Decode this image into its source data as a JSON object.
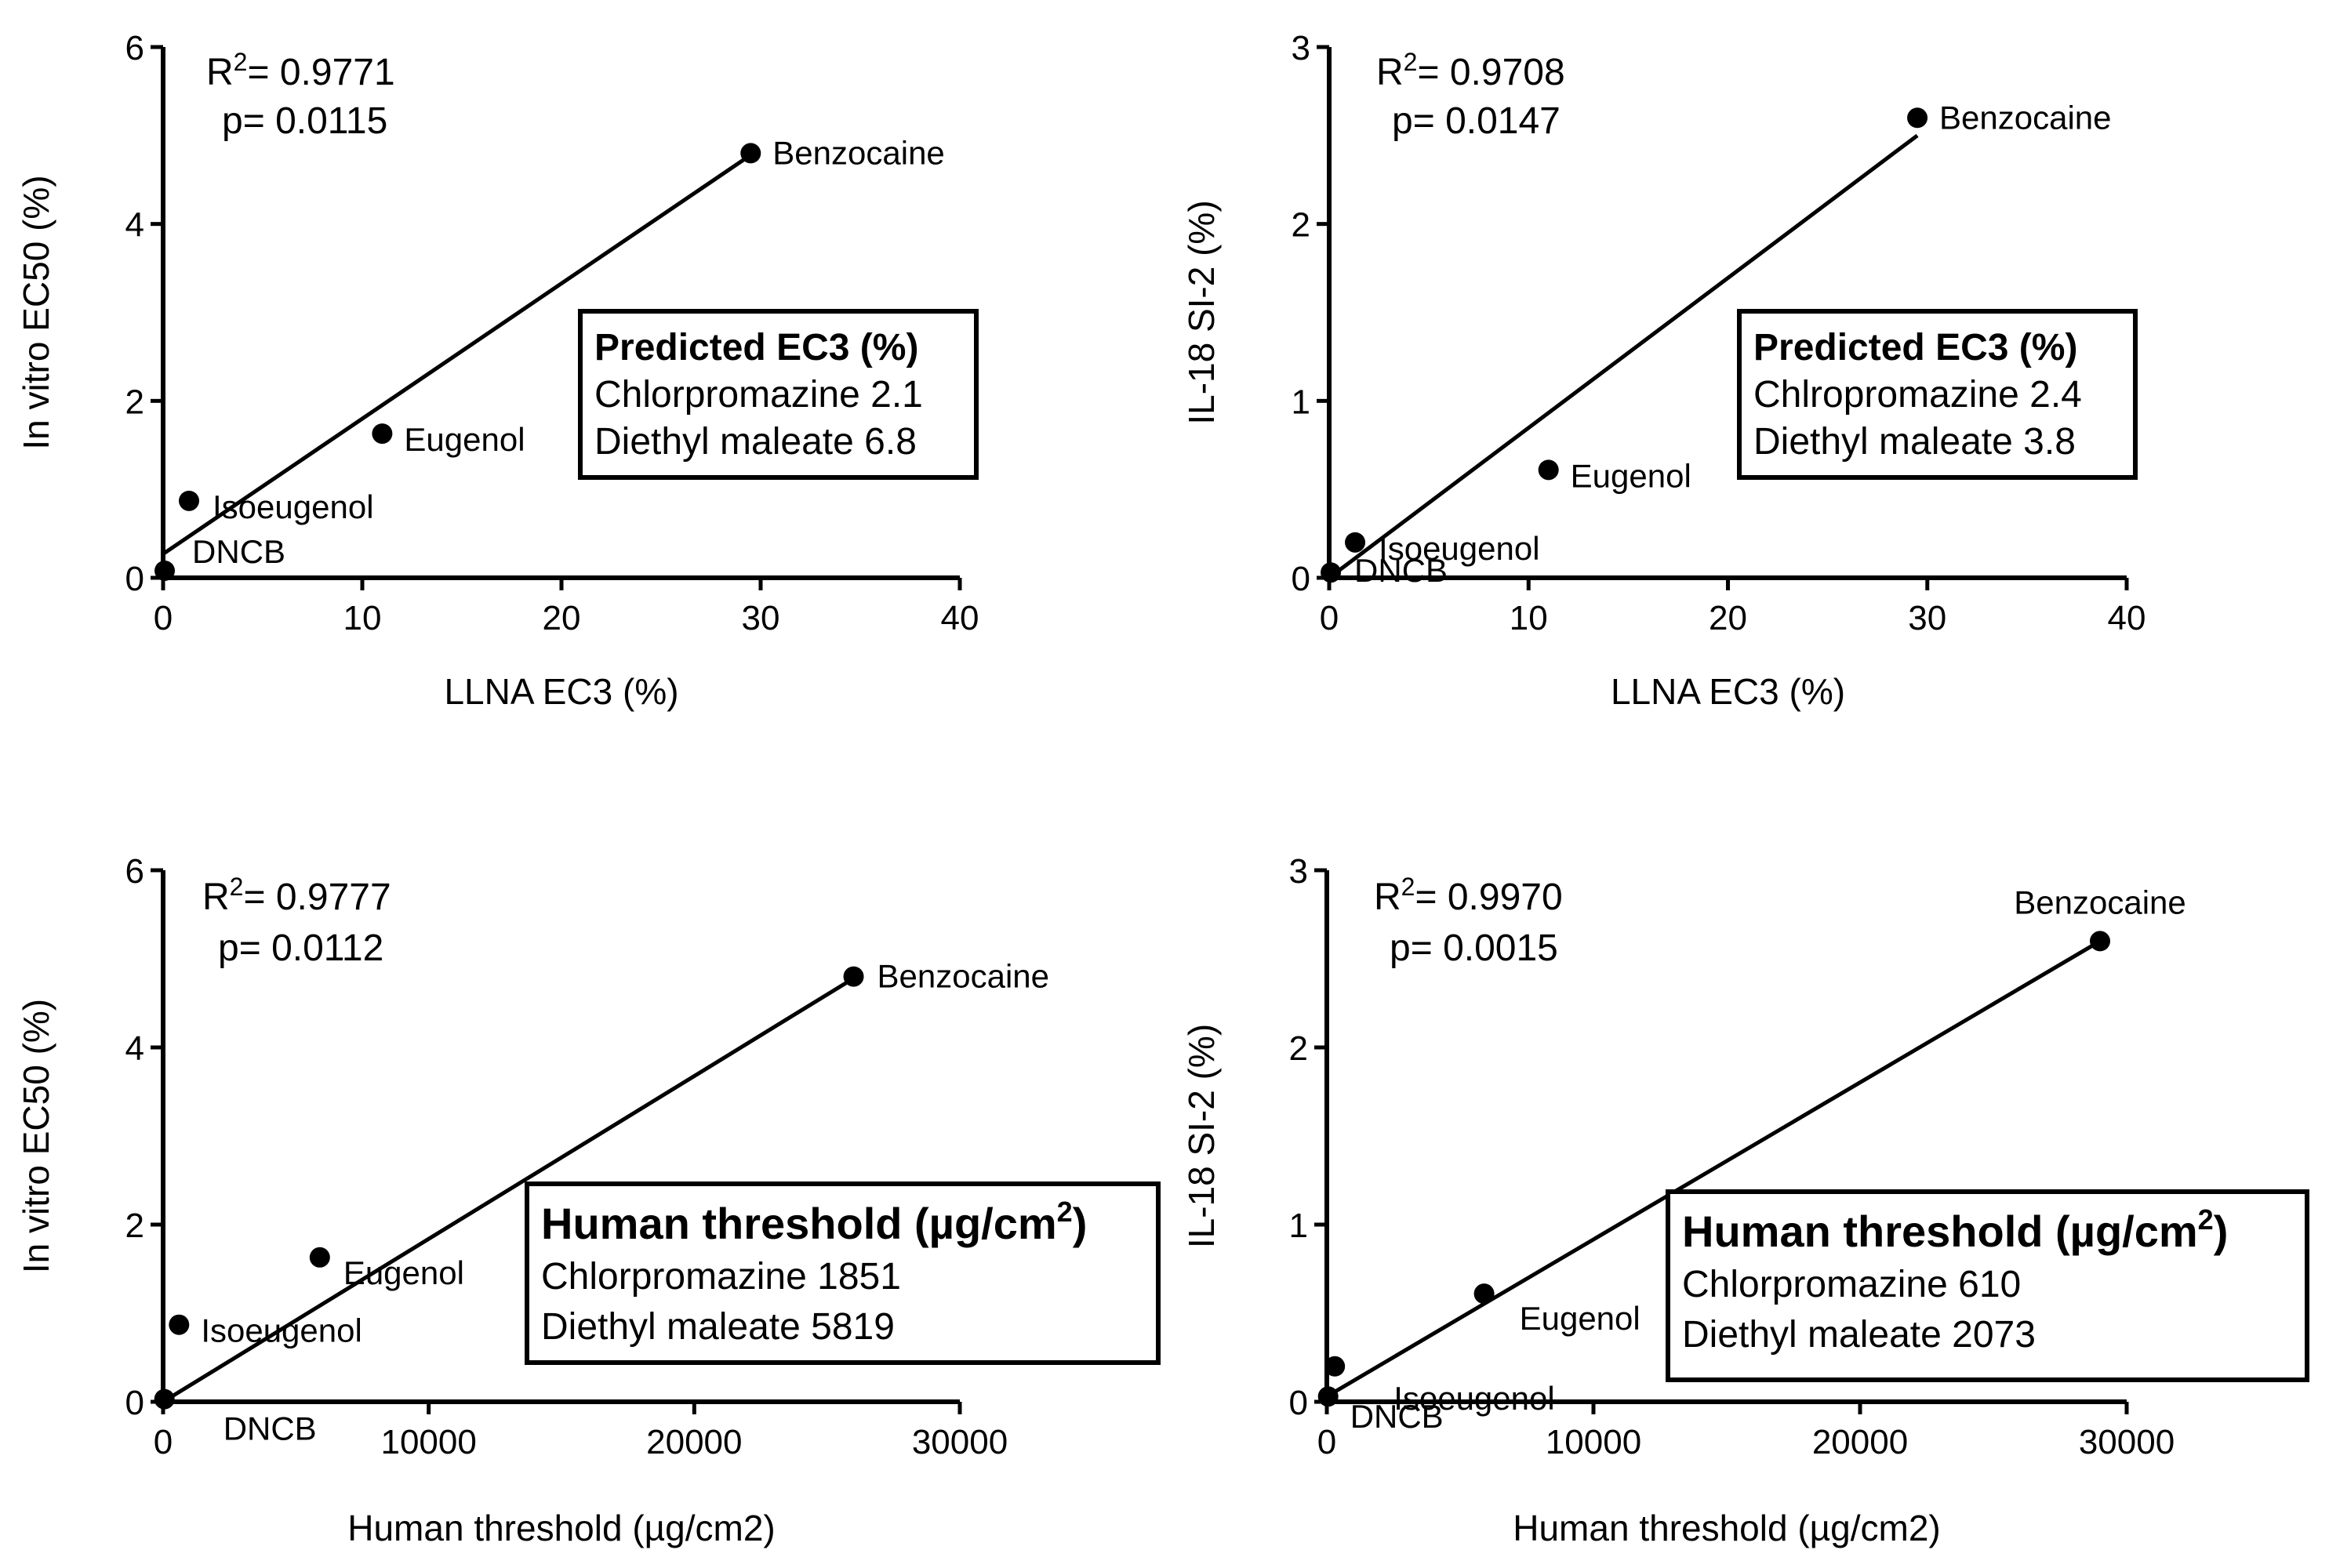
{
  "chart_data": [
    {
      "type": "scatter",
      "panel": "top-left",
      "xlabel": "LLNA EC3 (%)",
      "ylabel": "In vitro EC50 (%)",
      "xlim": [
        0,
        40
      ],
      "ylim": [
        0,
        6
      ],
      "xticks": [
        "0",
        "10",
        "20",
        "30",
        "40"
      ],
      "yticks": [
        "0",
        "2",
        "4",
        "6"
      ],
      "points": [
        {
          "name": "DNCB",
          "x": 0.08,
          "y": 0.08
        },
        {
          "name": "Isoeugenol",
          "x": 1.3,
          "y": 0.87
        },
        {
          "name": "Eugenol",
          "x": 11,
          "y": 1.63
        },
        {
          "name": "Benzocaine",
          "x": 29.5,
          "y": 4.8
        }
      ],
      "fit_line": {
        "x": [
          0,
          29.5
        ],
        "y": [
          0.27,
          4.78
        ]
      },
      "r2_prefix": "R",
      "r2_sup": "2",
      "r2_value": "= 0.9771",
      "p_text": "p= 0.0115",
      "box": {
        "title": "Predicted EC3 (%)",
        "title_unit_sup": "",
        "title_suffix": "",
        "lines": [
          "Chlorpromazine 2.1",
          "Diethyl maleate 6.8"
        ]
      }
    },
    {
      "type": "scatter",
      "panel": "top-right",
      "xlabel": "LLNA EC3 (%)",
      "ylabel": "IL-18 SI-2 (%)",
      "xlim": [
        0,
        40
      ],
      "ylim": [
        0,
        3
      ],
      "xticks": [
        "0",
        "10",
        "20",
        "30",
        "40"
      ],
      "yticks": [
        "0",
        "1",
        "2",
        "3"
      ],
      "points": [
        {
          "name": "DNCB",
          "x": 0.08,
          "y": 0.03
        },
        {
          "name": "Isoeugenol",
          "x": 1.3,
          "y": 0.2
        },
        {
          "name": "Eugenol",
          "x": 11,
          "y": 0.61
        },
        {
          "name": "Benzocaine",
          "x": 29.5,
          "y": 2.6
        }
      ],
      "fit_line": {
        "x": [
          0,
          29.5
        ],
        "y": [
          0.0,
          2.5
        ]
      },
      "r2_prefix": "R",
      "r2_sup": "2",
      "r2_value": "= 0.9708",
      "p_text": "p= 0.0147",
      "box": {
        "title": "Predicted EC3 (%)",
        "title_unit_sup": "",
        "title_suffix": "",
        "lines": [
          "Chlropromazine 2.4",
          "Diethyl maleate 3.8"
        ]
      }
    },
    {
      "type": "scatter",
      "panel": "bottom-left",
      "xlabel": "Human threshold (µg/cm2)",
      "ylabel": "In vitro EC50 (%)",
      "xlim": [
        0,
        30000
      ],
      "ylim": [
        0,
        6
      ],
      "xticks": [
        "0",
        "10000",
        "20000",
        "30000"
      ],
      "yticks": [
        "0",
        "2",
        "4",
        "6"
      ],
      "points": [
        {
          "name": "DNCB",
          "x": 50,
          "y": 0.03
        },
        {
          "name": "Isoeugenol",
          "x": 600,
          "y": 0.87
        },
        {
          "name": "Eugenol",
          "x": 5900,
          "y": 1.63
        },
        {
          "name": "Benzocaine",
          "x": 26000,
          "y": 4.8
        }
      ],
      "fit_line": {
        "x": [
          0,
          26000
        ],
        "y": [
          0.0,
          4.78
        ]
      },
      "r2_prefix": "R",
      "r2_sup": "2",
      "r2_value": "= 0.9777",
      "p_text": "p= 0.0112",
      "box": {
        "title": "Human threshold (µg/cm",
        "title_unit_sup": "2",
        "title_suffix": ")",
        "lines": [
          "Chlorpromazine 1851",
          "Diethyl maleate 5819"
        ]
      }
    },
    {
      "type": "scatter",
      "panel": "bottom-right",
      "xlabel": "Human threshold (µg/cm2)",
      "ylabel": "IL-18 SI-2 (%)",
      "xlim": [
        0,
        30000
      ],
      "ylim": [
        0,
        3
      ],
      "xticks": [
        "0",
        "10000",
        "20000",
        "30000"
      ],
      "yticks": [
        "0",
        "1",
        "2",
        "3"
      ],
      "points": [
        {
          "name": "DNCB",
          "x": 50,
          "y": 0.03
        },
        {
          "name": "Isoeugenol",
          "x": 300,
          "y": 0.2
        },
        {
          "name": "Eugenol",
          "x": 5900,
          "y": 0.61
        },
        {
          "name": "Benzocaine",
          "x": 29000,
          "y": 2.6
        }
      ],
      "fit_line": {
        "x": [
          0,
          29000
        ],
        "y": [
          0.03,
          2.6
        ]
      },
      "r2_prefix": "R",
      "r2_sup": "2",
      "r2_value": "= 0.9970",
      "p_text": "p= 0.0015",
      "box": {
        "title": "Human threshold (µg/cm",
        "title_unit_sup": "2",
        "title_suffix": ")",
        "lines": [
          "Chlorpromazine 610",
          "Diethyl maleate 2073"
        ]
      }
    }
  ]
}
